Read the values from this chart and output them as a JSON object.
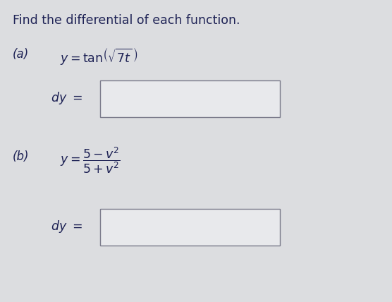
{
  "title": "Find the differential of each function.",
  "background_color": "#dcdde0",
  "text_color": "#1e2255",
  "box_facecolor": "#e8e9ec",
  "box_edgecolor": "#7a7a8a",
  "figsize": [
    5.56,
    4.28
  ],
  "dpi": 100,
  "part_a_label": "(a)",
  "part_b_label": "(b)",
  "dy_label": "dy ="
}
